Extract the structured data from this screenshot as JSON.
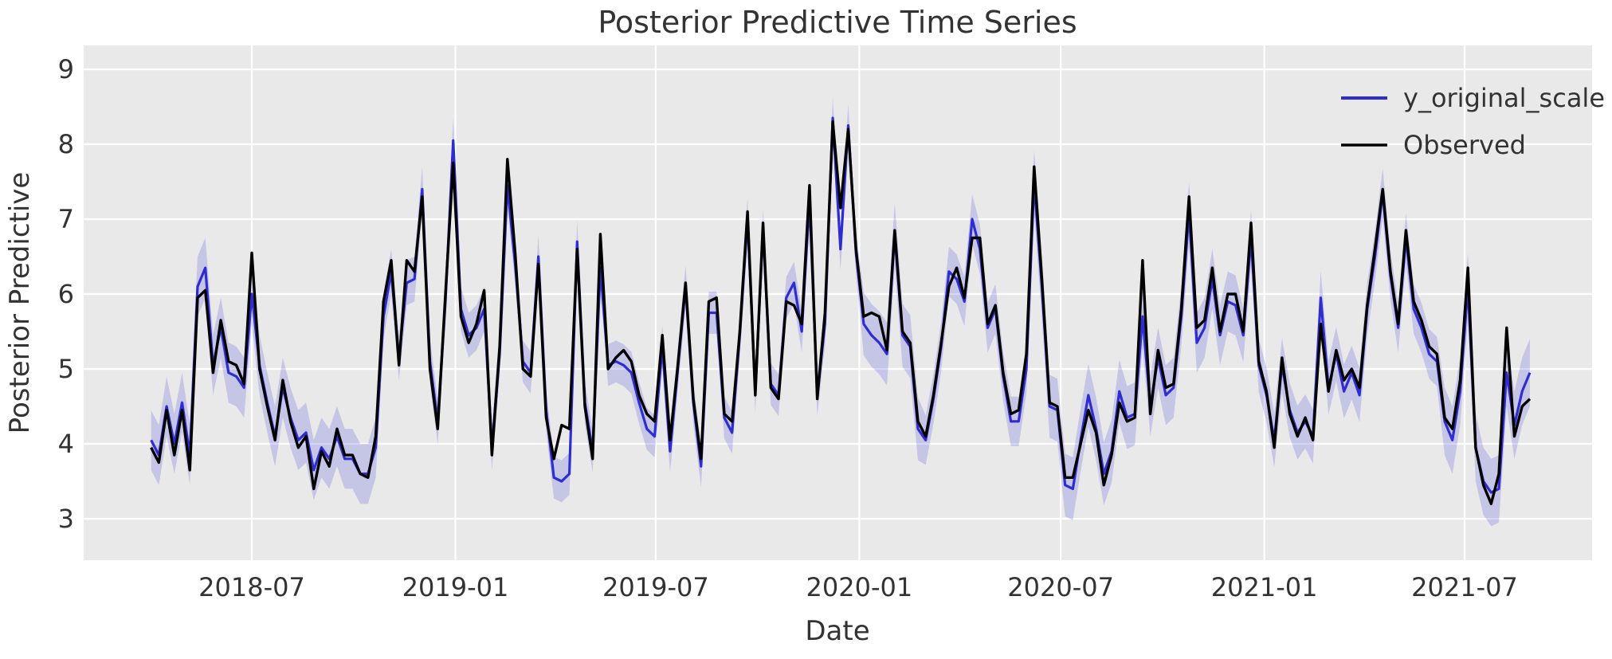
{
  "title": "Posterior Predictive Time Series",
  "colors": {
    "page_background": "#ffffff",
    "plot_background": "#e9e9e9",
    "grid": "#ffffff",
    "text": "#333333",
    "band_fill": "#4343d9",
    "band_opacity": 0.22,
    "blue_line": "#2f2dd1",
    "black_line": "#000000"
  },
  "chart_data": {
    "type": "line",
    "title": "Posterior Predictive Time Series",
    "xlabel": "Date",
    "ylabel": "Posterior Predictive",
    "legend_position": "upper right",
    "grid": true,
    "ylim": [
      2.45,
      9.32
    ],
    "yticks": [
      3,
      4,
      5,
      6,
      7,
      8,
      9
    ],
    "x_ticks": [
      {
        "label": "2018-07",
        "date": "2018-07-01"
      },
      {
        "label": "2019-01",
        "date": "2019-01-01"
      },
      {
        "label": "2019-07",
        "date": "2019-07-01"
      },
      {
        "label": "2020-01",
        "date": "2020-01-01"
      },
      {
        "label": "2020-07",
        "date": "2020-07-01"
      },
      {
        "label": "2021-01",
        "date": "2021-01-01"
      },
      {
        "label": "2021-07",
        "date": "2021-07-01"
      }
    ],
    "x_start_date": "2018-04-01",
    "x_step_days": 7,
    "n_points": 179,
    "series": [
      {
        "name": "y_original_scale",
        "color": "#2f2dd1",
        "values": [
          4.05,
          3.85,
          4.5,
          4.0,
          4.55,
          3.85,
          6.1,
          6.35,
          5.05,
          5.55,
          4.95,
          4.9,
          4.75,
          6.0,
          5.05,
          4.55,
          4.1,
          4.75,
          4.35,
          4.05,
          4.15,
          3.65,
          3.95,
          3.8,
          4.1,
          3.8,
          3.8,
          3.6,
          3.6,
          3.95,
          5.7,
          6.3,
          5.15,
          6.15,
          6.2,
          7.4,
          5.1,
          4.3,
          5.9,
          8.05,
          5.8,
          5.45,
          5.55,
          5.8,
          3.95,
          5.2,
          7.45,
          6.4,
          5.1,
          4.95,
          6.5,
          4.45,
          3.55,
          3.5,
          3.6,
          6.7,
          4.55,
          3.9,
          6.35,
          5.05,
          5.1,
          5.05,
          4.95,
          4.55,
          4.2,
          4.1,
          5.3,
          3.9,
          5.0,
          6.1,
          4.55,
          3.7,
          5.75,
          5.75,
          4.35,
          4.15,
          5.45,
          7.0,
          4.7,
          6.85,
          4.8,
          4.65,
          5.95,
          6.15,
          5.5,
          7.25,
          4.65,
          5.6,
          8.35,
          6.6,
          8.25,
          6.55,
          5.6,
          5.45,
          5.35,
          5.2,
          6.8,
          5.45,
          5.3,
          4.2,
          4.05,
          4.6,
          5.3,
          6.3,
          6.2,
          5.9,
          7.0,
          6.6,
          5.55,
          5.8,
          4.9,
          4.3,
          4.3,
          5.0,
          7.5,
          6.1,
          4.5,
          4.45,
          3.45,
          3.4,
          4.05,
          4.65,
          4.2,
          3.6,
          3.9,
          4.7,
          4.35,
          4.4,
          5.7,
          4.5,
          5.15,
          4.65,
          4.75,
          5.7,
          7.1,
          5.35,
          5.55,
          6.2,
          5.45,
          5.9,
          5.85,
          5.45,
          6.75,
          5.05,
          4.65,
          4.05,
          5.05,
          4.45,
          4.15,
          4.3,
          4.1,
          5.95,
          4.75,
          5.2,
          4.7,
          4.95,
          4.65,
          5.8,
          6.5,
          7.35,
          6.25,
          5.55,
          6.75,
          5.8,
          5.55,
          5.2,
          5.1,
          4.3,
          4.05,
          4.7,
          6.1,
          3.95,
          3.5,
          3.35,
          3.4,
          4.95,
          4.25,
          4.7,
          4.95
        ]
      },
      {
        "name": "Observed",
        "color": "#000000",
        "values": [
          3.95,
          3.75,
          4.45,
          3.85,
          4.45,
          3.65,
          5.95,
          6.05,
          4.95,
          5.65,
          5.1,
          5.05,
          4.8,
          6.55,
          5.0,
          4.5,
          4.05,
          4.85,
          4.3,
          3.95,
          4.1,
          3.4,
          3.9,
          3.7,
          4.2,
          3.85,
          3.85,
          3.6,
          3.55,
          4.1,
          5.9,
          6.45,
          5.05,
          6.45,
          6.3,
          7.3,
          5.0,
          4.2,
          6.0,
          7.75,
          5.7,
          5.35,
          5.6,
          6.05,
          3.85,
          5.3,
          7.8,
          6.55,
          5.0,
          4.9,
          6.4,
          4.35,
          3.8,
          4.25,
          4.2,
          6.6,
          4.5,
          3.8,
          6.8,
          5.0,
          5.15,
          5.25,
          5.1,
          4.65,
          4.4,
          4.3,
          5.45,
          4.05,
          5.05,
          6.15,
          4.6,
          3.8,
          5.9,
          5.95,
          4.4,
          4.3,
          5.5,
          7.1,
          4.65,
          6.95,
          4.75,
          4.6,
          5.9,
          5.85,
          5.6,
          7.45,
          4.6,
          5.75,
          8.3,
          7.15,
          8.2,
          6.6,
          5.7,
          5.75,
          5.7,
          5.25,
          6.85,
          5.5,
          5.35,
          4.3,
          4.1,
          4.65,
          5.35,
          6.1,
          6.35,
          5.95,
          6.75,
          6.75,
          5.6,
          5.85,
          4.95,
          4.4,
          4.45,
          5.2,
          7.7,
          6.2,
          4.55,
          4.5,
          3.55,
          3.55,
          4.0,
          4.45,
          4.15,
          3.45,
          3.85,
          4.55,
          4.3,
          4.35,
          6.45,
          4.4,
          5.25,
          4.75,
          4.8,
          5.8,
          7.3,
          5.55,
          5.65,
          6.35,
          5.5,
          6.0,
          6.0,
          5.5,
          6.95,
          5.1,
          4.7,
          3.95,
          5.15,
          4.4,
          4.1,
          4.35,
          4.05,
          5.6,
          4.7,
          5.25,
          4.85,
          5.0,
          4.75,
          5.85,
          6.6,
          7.4,
          6.3,
          5.6,
          6.85,
          5.9,
          5.65,
          5.3,
          5.2,
          4.35,
          4.2,
          4.85,
          6.35,
          3.95,
          3.45,
          3.2,
          3.6,
          5.55,
          4.1,
          4.5,
          4.6
        ]
      }
    ],
    "band": {
      "around_series": "y_original_scale",
      "color": "#4343d9",
      "opacity": 0.22,
      "halfwidth_regimes": [
        {
          "from": 0,
          "to": 29,
          "hw": 0.4
        },
        {
          "from": 30,
          "to": 45,
          "hw": 0.3
        },
        {
          "from": 46,
          "to": 91,
          "hw": 0.28
        },
        {
          "from": 92,
          "to": 99,
          "hw": 0.42
        },
        {
          "from": 100,
          "to": 113,
          "hw": 0.33
        },
        {
          "from": 114,
          "to": 127,
          "hw": 0.42
        },
        {
          "from": 128,
          "to": 140,
          "hw": 0.4
        },
        {
          "from": 141,
          "to": 157,
          "hw": 0.36
        },
        {
          "from": 158,
          "to": 166,
          "hw": 0.33
        },
        {
          "from": 167,
          "to": 178,
          "hw": 0.45
        }
      ]
    }
  }
}
